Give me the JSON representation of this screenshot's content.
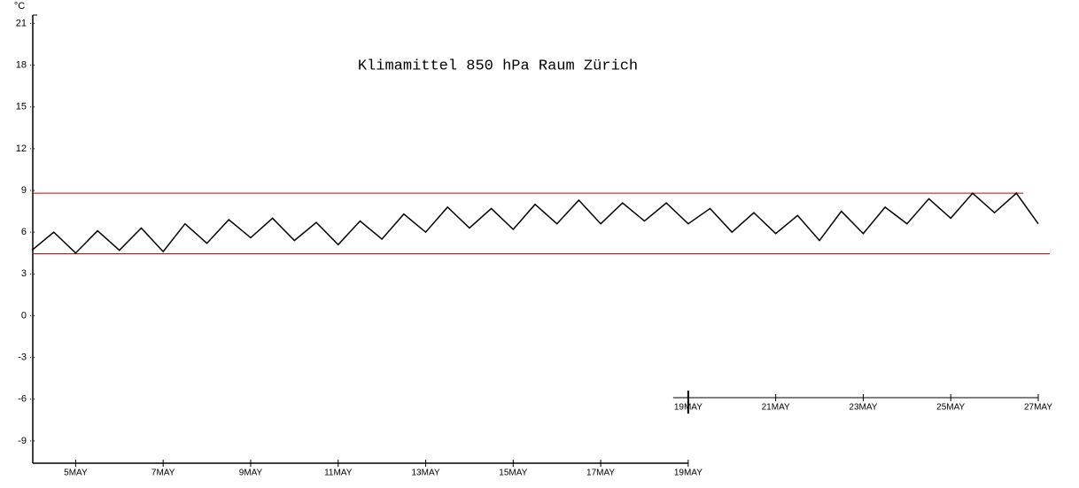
{
  "chart_data": {
    "type": "line",
    "title": "Klimamittel 850 hPa Raum Zürich",
    "y_label": "°C",
    "x": [
      4,
      4.5,
      5,
      5.5,
      6,
      6.5,
      7,
      7.5,
      8,
      8.5,
      9,
      9.5,
      10,
      10.5,
      11,
      11.5,
      12,
      12.5,
      13,
      13.5,
      14,
      14.5,
      15,
      15.5,
      16,
      16.5,
      17,
      17.5,
      18,
      18.5,
      19,
      19.5,
      20,
      20.5,
      21,
      21.5,
      22,
      22.5,
      23,
      23.5,
      24,
      24.5,
      25,
      25.5,
      26,
      26.5,
      27
    ],
    "series": [
      {
        "color": "#000000",
        "values": [
          4.7,
          6.0,
          4.5,
          6.1,
          4.7,
          6.3,
          4.6,
          6.6,
          5.2,
          6.9,
          5.6,
          7.0,
          5.4,
          6.7,
          5.1,
          6.8,
          5.5,
          7.3,
          6.0,
          7.8,
          6.3,
          7.7,
          6.2,
          8.0,
          6.6,
          8.3,
          6.6,
          8.1,
          6.8,
          8.1,
          6.6,
          7.7,
          6.0,
          7.4,
          5.9,
          7.2,
          5.4,
          7.5,
          5.9,
          7.8,
          6.6,
          8.4,
          7.0,
          8.8,
          7.4,
          8.8,
          6.6
        ]
      }
    ],
    "hlines": [
      {
        "value": 8.8,
        "color": "#cc0000"
      },
      {
        "value": 4.45,
        "color": "#cc0000"
      }
    ],
    "xlim": [
      4,
      27
    ],
    "ylim": [
      -10.6,
      21.6
    ],
    "yticks": [
      -9,
      -6,
      -3,
      0,
      3,
      6,
      9,
      12,
      15,
      18,
      21
    ],
    "xticks": [
      {
        "value": 5,
        "label": "5MAY"
      },
      {
        "value": 7,
        "label": "7MAY"
      },
      {
        "value": 9,
        "label": "9MAY"
      },
      {
        "value": 11,
        "label": "11MAY"
      },
      {
        "value": 13,
        "label": "13MAY"
      },
      {
        "value": 15,
        "label": "15MAY"
      },
      {
        "value": 17,
        "label": "17MAY"
      },
      {
        "value": 19,
        "label": "19MAY"
      }
    ],
    "x2ticks": [
      {
        "value": 19,
        "label": "19MAY"
      },
      {
        "value": 21,
        "label": "21MAY"
      },
      {
        "value": 23,
        "label": "23MAY"
      },
      {
        "value": 25,
        "label": "25MAY"
      },
      {
        "value": 27,
        "label": "27MAY"
      }
    ]
  }
}
